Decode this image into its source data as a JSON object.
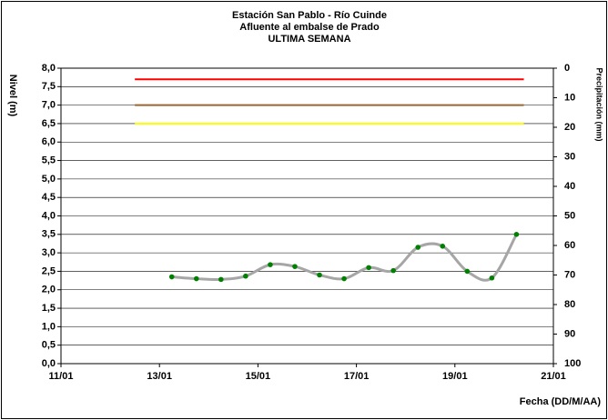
{
  "chart_data": {
    "type": "line",
    "title": [
      "Estación San Pablo - Río Cuinde",
      "Afluente al embalse de Prado",
      "ULTIMA SEMANA"
    ],
    "x_label": "Fecha (DD/M/AA)",
    "y_label": "Nivel (m)",
    "y2_label": "Precipitación (mm)",
    "xlim": [
      11,
      21
    ],
    "xticks": [
      {
        "value": 11,
        "label": "11/01"
      },
      {
        "value": 13,
        "label": "13/01"
      },
      {
        "value": 15,
        "label": "15/01"
      },
      {
        "value": 17,
        "label": "17/01"
      },
      {
        "value": 19,
        "label": "19/01"
      },
      {
        "value": 21,
        "label": "21/01"
      }
    ],
    "ylim": [
      0,
      8
    ],
    "yticks": [
      {
        "value": 0,
        "label": "0,0"
      },
      {
        "value": 0.5,
        "label": "0,5"
      },
      {
        "value": 1,
        "label": "1,0"
      },
      {
        "value": 1.5,
        "label": "1,5"
      },
      {
        "value": 2,
        "label": "2,0"
      },
      {
        "value": 2.5,
        "label": "2,5"
      },
      {
        "value": 3,
        "label": "3,0"
      },
      {
        "value": 3.5,
        "label": "3,5"
      },
      {
        "value": 4,
        "label": "4,0"
      },
      {
        "value": 4.5,
        "label": "4,5"
      },
      {
        "value": 5,
        "label": "5,0"
      },
      {
        "value": 5.5,
        "label": "5,5"
      },
      {
        "value": 6,
        "label": "6,0"
      },
      {
        "value": 6.5,
        "label": "6,5"
      },
      {
        "value": 7,
        "label": "7,0"
      },
      {
        "value": 7.5,
        "label": "7,5"
      },
      {
        "value": 8,
        "label": "8,0"
      }
    ],
    "y2lim": [
      100,
      0
    ],
    "y2ticks": [
      0,
      10,
      20,
      30,
      40,
      50,
      60,
      70,
      80,
      90,
      100
    ],
    "grid": true,
    "series": [
      {
        "color": "#a6a6a6",
        "marker_color": "#008000",
        "x": [
          13.25,
          13.75,
          14.25,
          14.75,
          15.25,
          15.75,
          16.25,
          16.75,
          17.25,
          17.75,
          18.25,
          18.75,
          19.25,
          19.75,
          20.25
        ],
        "values": [
          2.35,
          2.3,
          2.28,
          2.37,
          2.68,
          2.63,
          2.4,
          2.3,
          2.6,
          2.52,
          3.15,
          3.18,
          2.5,
          2.32,
          3.5
        ]
      },
      {
        "color": "#ff0000",
        "x": [
          12.5,
          20.4
        ],
        "values": [
          7.7,
          7.7
        ]
      },
      {
        "color": "#996633",
        "x": [
          12.5,
          20.4
        ],
        "values": [
          7.0,
          7.0
        ]
      },
      {
        "color": "#ffff00",
        "x": [
          12.5,
          20.4
        ],
        "values": [
          6.5,
          6.5
        ]
      }
    ]
  }
}
